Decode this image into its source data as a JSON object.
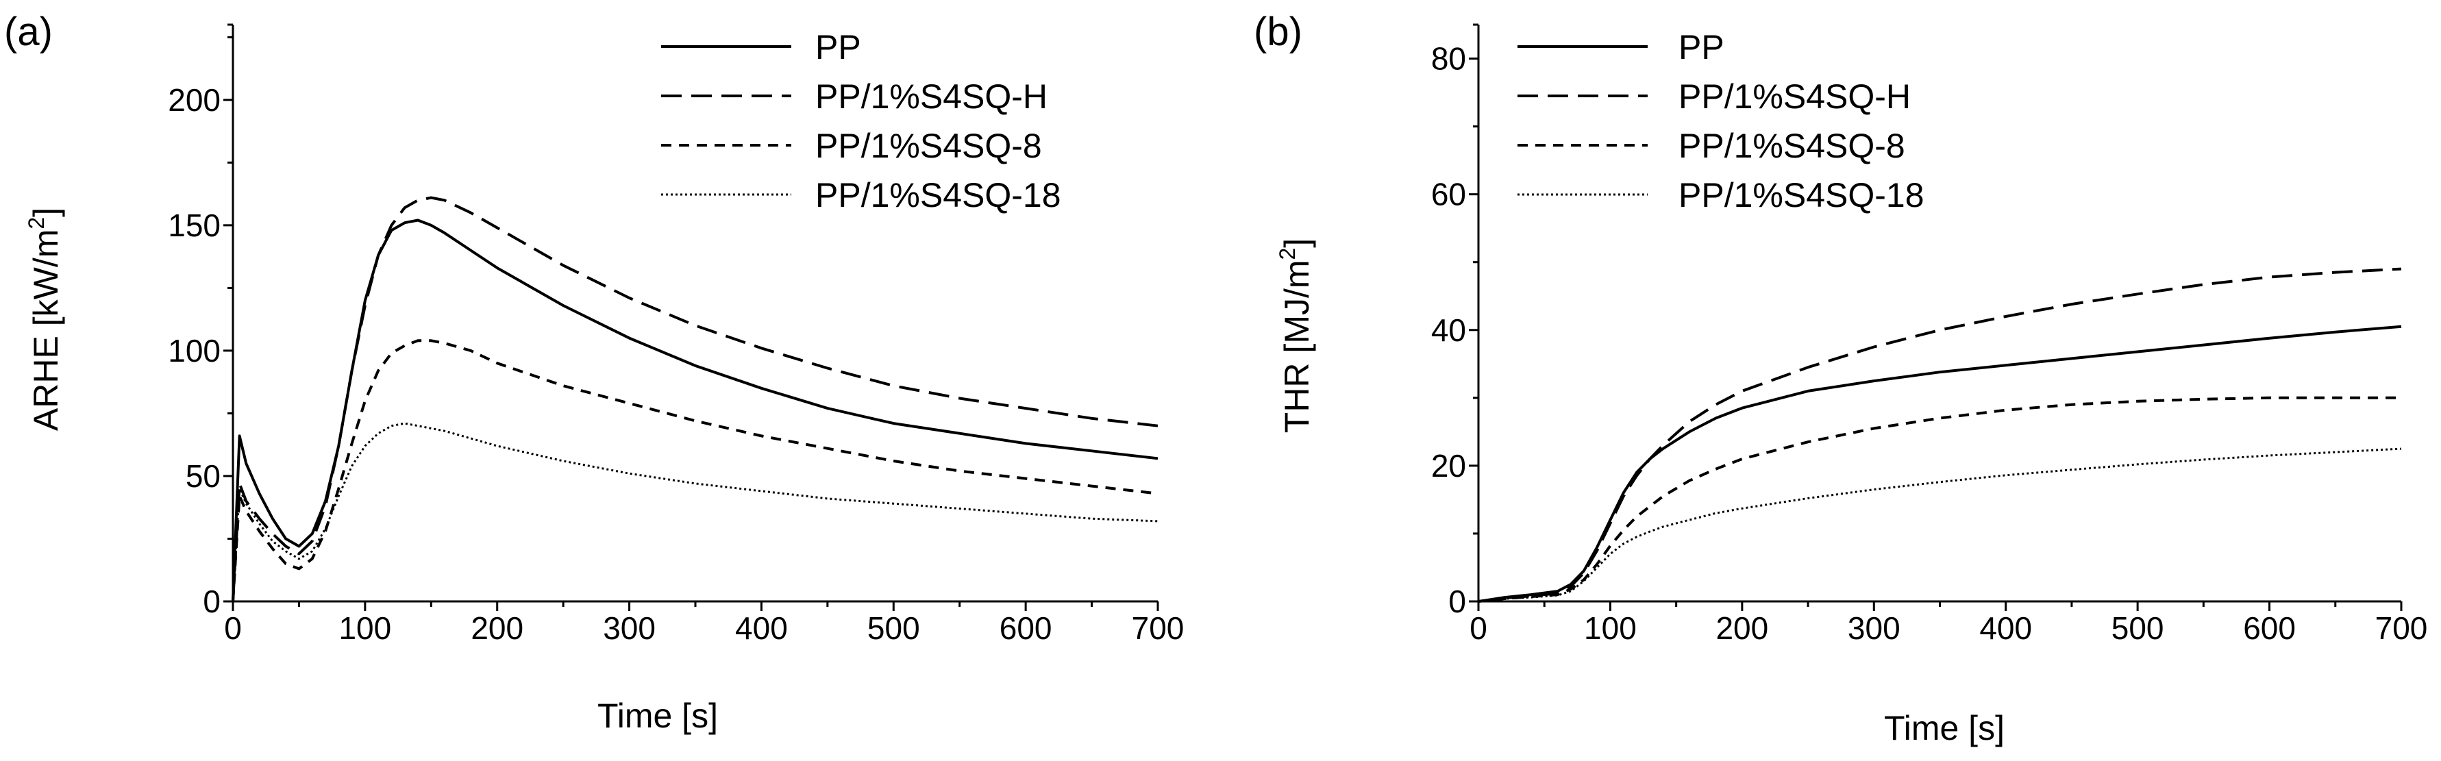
{
  "chart_data": [
    {
      "panel_label": "(a)",
      "type": "line",
      "xlabel": "Time [s]",
      "ylabel_main": "ARHE [kW/m",
      "ylabel_sup": "2",
      "ylabel_tail": "]",
      "xlim": [
        0,
        700
      ],
      "ylim": [
        0,
        230
      ],
      "xticks": [
        0,
        100,
        200,
        300,
        400,
        500,
        600,
        700
      ],
      "yticks": [
        0,
        50,
        100,
        150,
        200
      ],
      "legend": "top-right",
      "series": [
        {
          "name": "PP",
          "dash": "solid",
          "x": [
            0,
            5,
            10,
            20,
            30,
            40,
            50,
            60,
            70,
            80,
            90,
            100,
            110,
            120,
            130,
            140,
            150,
            160,
            180,
            200,
            250,
            300,
            350,
            400,
            450,
            500,
            550,
            600,
            650,
            700
          ],
          "y": [
            0,
            66,
            55,
            43,
            33,
            25,
            22,
            27,
            40,
            62,
            92,
            120,
            138,
            148,
            151,
            152,
            150,
            147,
            140,
            133,
            118,
            105,
            94,
            85,
            77,
            71,
            67,
            63,
            60,
            57
          ]
        },
        {
          "name": "PP/1%S4SQ-H",
          "dash": "long",
          "x": [
            0,
            5,
            10,
            20,
            30,
            40,
            50,
            60,
            70,
            80,
            90,
            100,
            110,
            120,
            130,
            140,
            150,
            160,
            180,
            200,
            250,
            300,
            350,
            400,
            450,
            500,
            550,
            600,
            650,
            700
          ],
          "y": [
            0,
            47,
            40,
            33,
            27,
            22,
            19,
            24,
            38,
            62,
            92,
            118,
            138,
            150,
            157,
            160,
            161,
            160,
            155,
            149,
            134,
            121,
            110,
            101,
            93,
            86,
            81,
            77,
            73,
            70
          ]
        },
        {
          "name": "PP/1%S4SQ-8",
          "dash": "short",
          "x": [
            0,
            5,
            10,
            20,
            30,
            40,
            50,
            60,
            70,
            80,
            90,
            100,
            110,
            120,
            130,
            140,
            150,
            160,
            180,
            200,
            250,
            300,
            350,
            400,
            450,
            500,
            550,
            600,
            650,
            700
          ],
          "y": [
            0,
            42,
            36,
            28,
            21,
            15,
            13,
            17,
            28,
            45,
            63,
            80,
            92,
            99,
            102,
            104,
            104,
            103,
            100,
            95,
            86,
            79,
            72,
            66,
            61,
            56,
            52,
            49,
            46,
            43
          ]
        },
        {
          "name": "PP/1%S4SQ-18",
          "dash": "dotted",
          "x": [
            0,
            5,
            10,
            20,
            30,
            40,
            50,
            60,
            70,
            80,
            90,
            100,
            110,
            120,
            130,
            140,
            150,
            160,
            180,
            200,
            250,
            300,
            350,
            400,
            450,
            500,
            550,
            600,
            650,
            700
          ],
          "y": [
            0,
            45,
            39,
            31,
            24,
            20,
            17,
            20,
            29,
            42,
            54,
            62,
            67,
            70,
            71,
            70,
            69,
            68,
            65,
            62,
            56,
            51,
            47,
            44,
            41,
            39,
            37,
            35,
            33,
            32
          ]
        }
      ],
      "legend_entries": [
        "PP",
        "PP/1%S4SQ-H",
        "PP/1%S4SQ-8",
        "PP/1%S4SQ-18"
      ]
    },
    {
      "panel_label": "(b)",
      "type": "line",
      "xlabel": "Time [s]",
      "ylabel_main": "THR [MJ/m",
      "ylabel_sup": "2",
      "ylabel_tail": "]",
      "xlim": [
        0,
        700
      ],
      "ylim": [
        0,
        85
      ],
      "xticks": [
        0,
        100,
        200,
        300,
        400,
        500,
        600,
        700
      ],
      "yticks": [
        0,
        20,
        40,
        60,
        80
      ],
      "legend": "top-left",
      "series": [
        {
          "name": "PP",
          "dash": "solid",
          "x": [
            0,
            20,
            40,
            60,
            70,
            80,
            90,
            100,
            110,
            120,
            130,
            140,
            160,
            180,
            200,
            250,
            300,
            350,
            400,
            450,
            500,
            550,
            600,
            650,
            700
          ],
          "y": [
            0,
            0.6,
            1.0,
            1.5,
            2.5,
            4.5,
            8,
            12,
            16,
            19,
            21,
            22.5,
            25,
            27,
            28.5,
            31,
            32.5,
            33.8,
            34.8,
            35.8,
            36.8,
            37.8,
            38.8,
            39.7,
            40.5
          ]
        },
        {
          "name": "PP/1%S4SQ-H",
          "dash": "long",
          "x": [
            0,
            20,
            40,
            60,
            70,
            80,
            90,
            100,
            110,
            120,
            130,
            140,
            160,
            180,
            200,
            250,
            300,
            350,
            400,
            450,
            500,
            550,
            600,
            650,
            700
          ],
          "y": [
            0,
            0.5,
            0.8,
            1.2,
            2.2,
            4.2,
            7.5,
            11.5,
            15.5,
            18.5,
            21,
            23,
            26.5,
            29,
            31,
            34.5,
            37.5,
            40,
            42,
            43.8,
            45.3,
            46.7,
            47.8,
            48.5,
            49
          ]
        },
        {
          "name": "PP/1%S4SQ-8",
          "dash": "short",
          "x": [
            0,
            20,
            40,
            60,
            70,
            80,
            90,
            100,
            110,
            120,
            130,
            140,
            160,
            180,
            200,
            250,
            300,
            350,
            400,
            450,
            500,
            550,
            600,
            650,
            700
          ],
          "y": [
            0,
            0.4,
            0.7,
            1.0,
            1.8,
            3.2,
            5.5,
            8.2,
            10.5,
            12.5,
            14,
            15.5,
            17.8,
            19.5,
            21,
            23.5,
            25.5,
            27,
            28.2,
            29,
            29.5,
            29.8,
            30,
            30,
            30
          ]
        },
        {
          "name": "PP/1%S4SQ-18",
          "dash": "dotted",
          "x": [
            0,
            20,
            40,
            60,
            70,
            80,
            90,
            100,
            110,
            120,
            130,
            140,
            160,
            180,
            200,
            250,
            300,
            350,
            400,
            450,
            500,
            550,
            600,
            650,
            700
          ],
          "y": [
            0,
            0.4,
            0.6,
            0.9,
            1.5,
            3.0,
            5.0,
            7.0,
            8.5,
            9.5,
            10.3,
            11,
            12,
            13,
            13.7,
            15.2,
            16.5,
            17.6,
            18.6,
            19.4,
            20.2,
            20.9,
            21.5,
            22,
            22.5
          ]
        }
      ],
      "legend_entries": [
        "PP",
        "PP/1%S4SQ-H",
        "PP/1%S4SQ-8",
        "PP/1%S4SQ-18"
      ]
    }
  ],
  "styles": {
    "line_color": "#000000",
    "background": "#ffffff"
  }
}
